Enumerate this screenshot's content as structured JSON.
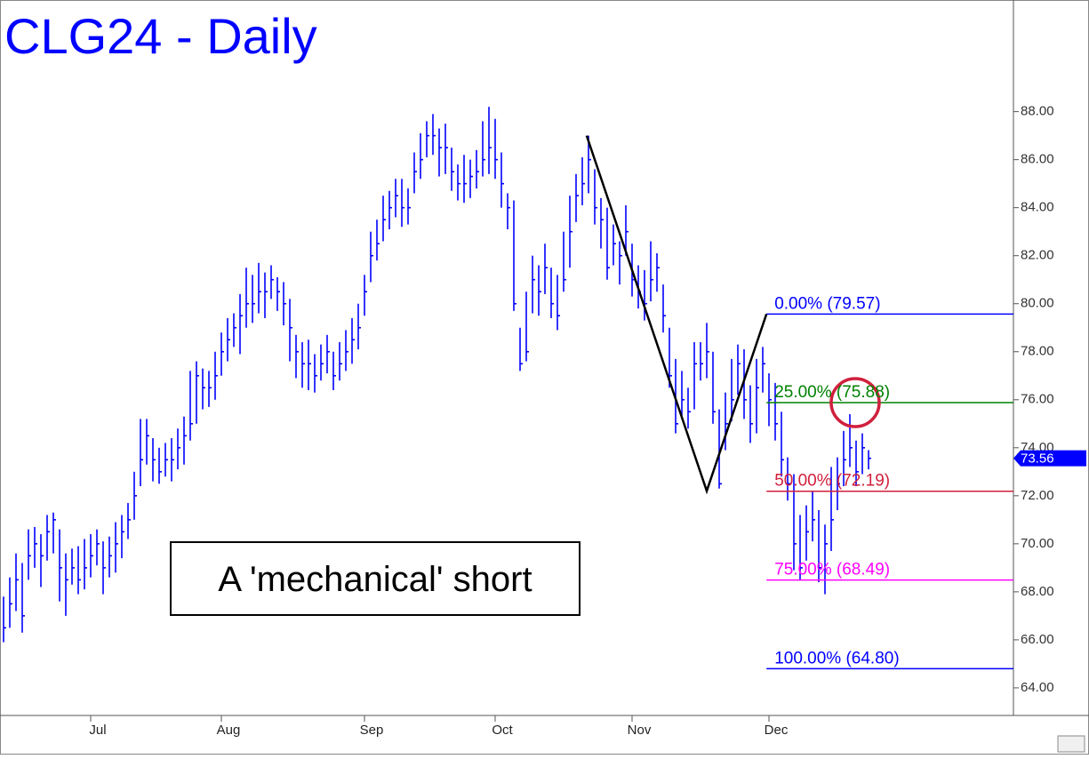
{
  "chart_data": {
    "type": "ohlc",
    "title": "CLG24 - Daily",
    "annotation": "A 'mechanical' short",
    "color": "#0000ff",
    "categories": [
      null,
      null,
      null,
      null,
      null,
      null,
      null,
      null,
      null,
      null,
      null,
      null,
      null,
      null,
      "Jul",
      null,
      null,
      null,
      null,
      null,
      null,
      null,
      null,
      null,
      null,
      null,
      null,
      null,
      null,
      null,
      null,
      null,
      null,
      null,
      null,
      "Aug",
      null,
      null,
      null,
      null,
      null,
      null,
      null,
      null,
      null,
      null,
      null,
      null,
      null,
      null,
      null,
      null,
      null,
      null,
      null,
      null,
      null,
      null,
      "Sep",
      null,
      null,
      null,
      null,
      null,
      null,
      null,
      null,
      null,
      null,
      null,
      null,
      null,
      null,
      null,
      null,
      null,
      null,
      null,
      null,
      "Oct",
      null,
      null,
      null,
      null,
      null,
      null,
      null,
      null,
      null,
      null,
      null,
      null,
      null,
      null,
      null,
      null,
      null,
      null,
      null,
      null,
      null,
      "Nov",
      null,
      null,
      null,
      null,
      null,
      null,
      null,
      null,
      null,
      null,
      null,
      null,
      null,
      null,
      null,
      null,
      null,
      null,
      null,
      null,
      null,
      "Dec",
      null,
      null,
      null,
      null,
      null,
      null,
      null,
      null,
      null,
      null,
      null,
      null,
      null,
      null,
      null,
      null
    ],
    "high": [
      67.8,
      68.6,
      69.6,
      69.2,
      70.6,
      70.7,
      70.4,
      71.2,
      71.3,
      70.6,
      69.6,
      69.8,
      69.9,
      70.2,
      70.4,
      70.6,
      70.1,
      70.3,
      70.9,
      71.2,
      71.7,
      73,
      75.2,
      75.2,
      74.4,
      74,
      74.2,
      74.4,
      74.8,
      75.3,
      77.2,
      77.6,
      77.3,
      77.2,
      78,
      78.8,
      79.4,
      79.6,
      80.4,
      81.5,
      81.2,
      81.7,
      81.3,
      81.6,
      81.1,
      80.9,
      80.2,
      78.7,
      78.4,
      78.5,
      77.9,
      78.3,
      78.7,
      78,
      78.4,
      78.9,
      79.4,
      80,
      81.2,
      83,
      83.5,
      84.5,
      84.7,
      85.2,
      85.2,
      84.8,
      86.3,
      87.1,
      87.6,
      87.9,
      87.3,
      87.5,
      86.5,
      85.8,
      86.2,
      86,
      86.4,
      87.6,
      88.2,
      87.7,
      86.3,
      84.6,
      84.3,
      79,
      80.5,
      82,
      81.6,
      82.5,
      81.5,
      81.2,
      83,
      84.5,
      85.4,
      86.1,
      87,
      85.6,
      84.4,
      84,
      83.3,
      82.6,
      84.1,
      82.5,
      81.6,
      81.4,
      82.6,
      82.1,
      80.8,
      79,
      77.7,
      77.2,
      76.5,
      78.4,
      78.4,
      79.2,
      78,
      75.6,
      76.3,
      77.7,
      78.3,
      78.1,
      76.6,
      77.7,
      78.2,
      77.1,
      76.7,
      75.5,
      73.6,
      72.9,
      71.2,
      71.6,
      72.2,
      71.4,
      70.8,
      73.2,
      73.6,
      74.7,
      75.4,
      74.3,
      74.6,
      73.9
    ],
    "low": [
      65.9,
      66.5,
      67.2,
      66.3,
      68.5,
      69,
      68.2,
      69.3,
      69.6,
      67.6,
      67,
      68.3,
      67.9,
      68.1,
      68.6,
      69.1,
      67.9,
      68.6,
      68.8,
      69.4,
      70.2,
      71,
      72.4,
      73.3,
      72.6,
      72.5,
      72.8,
      72.6,
      73.1,
      73.3,
      74.3,
      75,
      75.6,
      75.7,
      76,
      77,
      77.6,
      78.2,
      77.9,
      79,
      79.2,
      79.6,
      79.4,
      80.2,
      79.7,
      79.1,
      77.6,
      76.9,
      76.5,
      76.4,
      76.3,
      76.8,
      77.1,
      76.4,
      76.8,
      77.2,
      77.5,
      78.1,
      79.5,
      80.9,
      81.8,
      82.6,
      83.1,
      83.6,
      83.2,
      83.3,
      84.6,
      85.2,
      86.1,
      86.2,
      85.3,
      85.4,
      84.7,
      84.3,
      84.2,
      84.4,
      84.8,
      85.3,
      85.4,
      85.2,
      84,
      83.1,
      79.7,
      77.2,
      77.6,
      79.6,
      79.5,
      80.4,
      79.4,
      78.9,
      80.5,
      81.5,
      83.4,
      84.1,
      84.6,
      83.3,
      82.3,
      81,
      81.6,
      80.8,
      82,
      80.3,
      79.8,
      79.3,
      80.1,
      80.5,
      78.8,
      76.5,
      74.6,
      75.2,
      74.8,
      75.6,
      76.8,
      76.9,
      75,
      72.3,
      73.9,
      75.1,
      76.2,
      75.2,
      74.2,
      74.6,
      76.3,
      74.9,
      74.3,
      72.8,
      71.8,
      68.9,
      68.5,
      69.3,
      70.1,
      68.4,
      67.9,
      69.7,
      71.4,
      72.4,
      73.2,
      72.4,
      72.9,
      73.1
    ],
    "close": [
      66.5,
      67.5,
      68.5,
      67,
      69.5,
      70,
      69.5,
      70.5,
      71,
      69,
      68.5,
      69,
      68.5,
      69,
      69.5,
      70,
      69,
      69.5,
      70,
      70.5,
      71,
      72,
      73.5,
      74.5,
      73.5,
      73,
      73.5,
      73.5,
      74,
      74.5,
      75,
      77,
      76.5,
      76.5,
      77,
      78,
      78.5,
      79,
      79.5,
      80,
      80,
      80.5,
      80.5,
      81,
      80.5,
      80,
      79,
      78,
      77.5,
      77.5,
      77,
      77.5,
      78,
      77,
      77.5,
      78,
      78.5,
      79,
      80.5,
      82,
      82.5,
      83.5,
      84,
      84.5,
      84,
      84,
      85.5,
      86,
      87,
      87,
      86.5,
      86.5,
      85.5,
      85,
      85,
      85.3,
      85.5,
      86,
      86.5,
      86,
      85,
      84,
      80,
      77.5,
      78,
      81,
      80.5,
      81.5,
      80,
      79.5,
      81,
      83,
      84.5,
      85,
      86,
      84,
      83.5,
      81.5,
      82.5,
      82,
      83,
      81,
      80.5,
      80,
      81,
      81.5,
      79.5,
      77,
      75,
      76,
      75.5,
      77.5,
      77.5,
      78,
      75.5,
      72.5,
      75,
      76,
      77.5,
      76,
      75,
      76.5,
      77.5,
      76,
      75,
      73.5,
      72.5,
      70,
      69,
      70.5,
      71,
      69,
      70,
      71,
      72.5,
      73.5,
      74,
      73,
      74,
      73.56
    ],
    "ylim": [
      62.85,
      92.65
    ],
    "yticks": [
      {
        "value": 64,
        "label": "64.00"
      },
      {
        "value": 66,
        "label": "66.00"
      },
      {
        "value": 68,
        "label": "68.00"
      },
      {
        "value": 70,
        "label": "70.00"
      },
      {
        "value": 72,
        "label": "72.00"
      },
      {
        "value": 74,
        "label": "74.00"
      },
      {
        "value": 76,
        "label": "76.00"
      },
      {
        "value": 78,
        "label": "78.00"
      },
      {
        "value": 80,
        "label": "80.00"
      },
      {
        "value": 82,
        "label": "82.00"
      },
      {
        "value": 84,
        "label": "84.00"
      },
      {
        "value": 86,
        "label": "86.00"
      },
      {
        "value": 88,
        "label": "88.00"
      }
    ],
    "last_price": {
      "value": 73.56,
      "label": "73.56"
    },
    "pattern": {
      "x": [
        93.7,
        113,
        122.6
      ],
      "values": [
        87,
        72.2,
        79.57
      ]
    },
    "levels_start": 122.6,
    "levels": [
      {
        "label": "0.00% (79.57)",
        "value": 79.57,
        "color": "#0000ff"
      },
      {
        "label": "25.00% (75.88)",
        "value": 75.88,
        "color": "#008000"
      },
      {
        "label": "50.00% (72.19)",
        "value": 72.19,
        "color": "#d0203c"
      },
      {
        "label": "75.00% (68.49)",
        "value": 68.49,
        "color": "#ff00ff"
      },
      {
        "label": "100.00% (64.80)",
        "value": 64.8,
        "color": "#0000ff"
      }
    ]
  }
}
